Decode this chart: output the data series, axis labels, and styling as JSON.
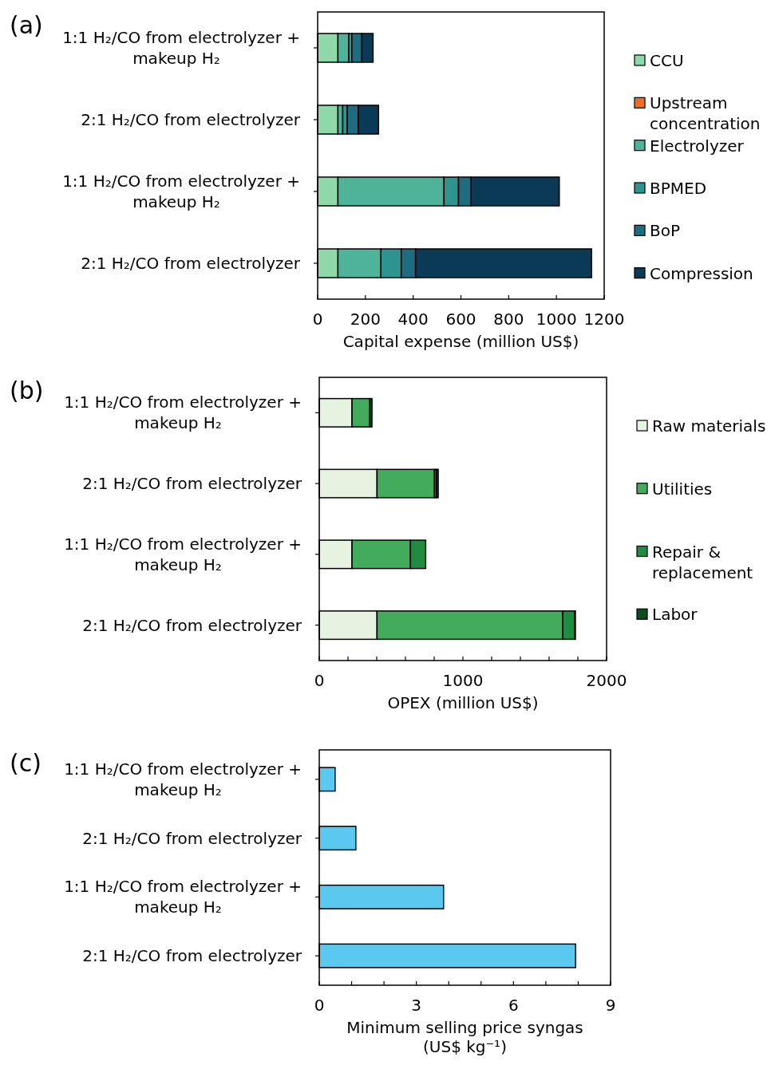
{
  "chart_data": [
    {
      "type": "bar",
      "orientation": "horizontal",
      "stacked": true,
      "title": "(a)",
      "xlabel": "Capital expense (million US$)",
      "categories": [
        "1:1 H₂/CO from electrolyzer + makeup H₂",
        "2:1 H₂/CO from electrolyzer",
        "1:1 H₂/CO from electrolyzer + makeup H₂",
        "2:1 H₂/CO from electrolyzer"
      ],
      "xlim": [
        0,
        1200
      ],
      "xticks": [
        0,
        200,
        400,
        600,
        800,
        1000,
        1200
      ],
      "legend": "right",
      "series": [
        {
          "name": "CCU",
          "color": "#8fd9a8",
          "values": [
            85,
            85,
            85,
            85
          ]
        },
        {
          "name": "Upstream concentration",
          "color": "#e8702a",
          "values": [
            0,
            0,
            0,
            0
          ]
        },
        {
          "name": "Electrolyzer",
          "color": "#4fb39a",
          "values": [
            45,
            20,
            444,
            180
          ]
        },
        {
          "name": "BPMED",
          "color": "#2e9490",
          "values": [
            13,
            19,
            61,
            85
          ]
        },
        {
          "name": "BoP",
          "color": "#1f6b80",
          "values": [
            42,
            46,
            52,
            60
          ]
        },
        {
          "name": "Compression",
          "color": "#0b3a57",
          "values": [
            47,
            85,
            370,
            737
          ]
        }
      ]
    },
    {
      "type": "bar",
      "orientation": "horizontal",
      "stacked": true,
      "title": "(b)",
      "xlabel": "OPEX (million US$)",
      "categories": [
        "1:1 H₂/CO from electrolyzer + makeup H₂",
        "2:1 H₂/CO from electrolyzer",
        "1:1 H₂/CO from electrolyzer + makeup H₂",
        "2:1 H₂/CO from electrolyzer"
      ],
      "xlim": [
        0,
        2000
      ],
      "xticks": [
        0,
        {
          "value": 200,
          "label": null
        },
        {
          "value": 400,
          "label": null
        },
        {
          "value": 600,
          "label": null
        },
        {
          "value": 800,
          "label": null
        },
        1000,
        {
          "value": 1200,
          "label": null
        },
        {
          "value": 1400,
          "label": null
        },
        {
          "value": 1600,
          "label": null
        },
        {
          "value": 1800,
          "label": null
        },
        2000
      ],
      "legend": "right",
      "series": [
        {
          "name": "Raw materials",
          "color": "#e5f3e0",
          "values": [
            228,
            402,
            228,
            402
          ]
        },
        {
          "name": "Utilities",
          "color": "#43ac5c",
          "values": [
            124,
            400,
            407,
            1293
          ]
        },
        {
          "name": "Repair & replacement",
          "color": "#208c3f",
          "values": [
            null,
            13,
            106,
            83
          ]
        },
        {
          "name": "Labor",
          "color": "#0b4d1e",
          "values": [
            15,
            13,
            0,
            5
          ]
        }
      ]
    },
    {
      "type": "bar",
      "orientation": "horizontal",
      "title": "(c)",
      "xlabel": "Minimum selling price syngas (US$ kg⁻¹)",
      "categories": [
        "1:1 H₂/CO from electrolyzer + makeup H₂",
        "2:1 H₂/CO from electrolyzer",
        "1:1 H₂/CO from electrolyzer + makeup H₂",
        "2:1 H₂/CO from electrolyzer"
      ],
      "xlim": [
        0,
        9
      ],
      "xticks": [
        0,
        {
          "value": 1,
          "label": null
        },
        {
          "value": 2,
          "label": null
        },
        3,
        {
          "value": 4,
          "label": null
        },
        {
          "value": 5,
          "label": null
        },
        6,
        {
          "value": 7,
          "label": null
        },
        {
          "value": 8,
          "label": null
        },
        9
      ],
      "color": "#5bc8f0",
      "values": [
        0.49,
        1.13,
        3.84,
        7.92
      ]
    }
  ]
}
